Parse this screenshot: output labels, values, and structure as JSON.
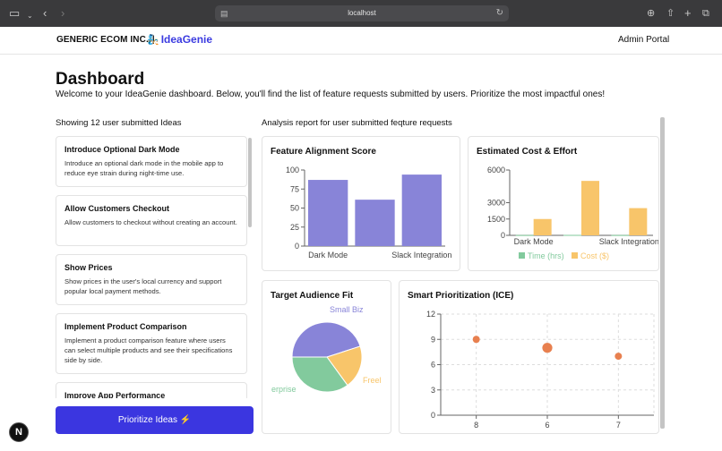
{
  "browser": {
    "url": "localhost",
    "icons": [
      "sidebar-icon",
      "chevron-down-icon",
      "back-icon",
      "forward-icon",
      "reload-icon",
      "download-icon",
      "share-icon",
      "new-tab-icon",
      "tabs-icon"
    ]
  },
  "header": {
    "company": "GENERIC ECOM INC.",
    "separator": "|",
    "app_name": "IdeaGenie",
    "portal": "Admin Portal"
  },
  "page": {
    "title": "Dashboard",
    "subtitle": "Welcome to your IdeaGenie dashboard. Below, you'll find the list of feature requests submitted by users. Prioritize the most impactful ones!"
  },
  "ideas": {
    "heading": "Showing 12 user submitted Ideas",
    "items": [
      {
        "title": "Introduce Optional Dark Mode",
        "description": "Introduce an optional dark mode in the mobile app to reduce eye strain during night-time use."
      },
      {
        "title": "Allow Customers Checkout",
        "description": "Allow customers to checkout without creating an account."
      },
      {
        "title": "Show Prices",
        "description": "Show prices in the user's local currency and support popular local payment methods."
      },
      {
        "title": "Implement Product Comparison",
        "description": "Implement a product comparison feature where users can select multiple products and see their specifications side by side."
      },
      {
        "title": "Improve App Performance",
        "description": ""
      }
    ],
    "cta_label": "Prioritize Ideas ⚡"
  },
  "analysis": {
    "heading": "Analysis report for user submitted feqture requests"
  },
  "badge": {
    "label": "N"
  },
  "chart_data": [
    {
      "type": "bar",
      "title": "Feature Alignment Score",
      "categories": [
        "Dark Mode",
        "",
        "Slack Integration"
      ],
      "values": [
        87,
        61,
        94
      ],
      "ylim": [
        0,
        100
      ],
      "yticks": [
        0,
        25,
        50,
        75,
        100
      ],
      "color": "#8884d8"
    },
    {
      "type": "bar",
      "title": "Estimated Cost & Effort",
      "categories": [
        "Dark Mode",
        "",
        "Slack Integration"
      ],
      "series": [
        {
          "name": "Time (hrs)",
          "values": [
            30,
            40,
            30
          ],
          "color": "#82ca9d"
        },
        {
          "name": "Cost ($)",
          "values": [
            1500,
            5000,
            2500
          ],
          "color": "#f8c56a"
        }
      ],
      "ylim": [
        0,
        6000
      ],
      "yticks": [
        0,
        1500,
        3000,
        6000
      ],
      "legend": "bottom"
    },
    {
      "type": "pie",
      "title": "Target Audience Fit",
      "slices": [
        {
          "name": "Small Biz",
          "value": 45,
          "color": "#8884d8"
        },
        {
          "name": "Freel",
          "value": 20,
          "color": "#f8c56a"
        },
        {
          "name": "erprise",
          "value": 35,
          "color": "#82ca9d"
        }
      ]
    },
    {
      "type": "scatter",
      "title": "Smart Prioritization (ICE)",
      "x_categories": [
        "8",
        "6",
        "7"
      ],
      "points": [
        {
          "x": "8",
          "y": 9,
          "size": 5
        },
        {
          "x": "6",
          "y": 8,
          "size": 7
        },
        {
          "x": "7",
          "y": 7,
          "size": 5
        }
      ],
      "ylim": [
        0,
        12
      ],
      "yticks": [
        0,
        3,
        6,
        9,
        12
      ],
      "color": "#e8804f",
      "grid": true
    }
  ]
}
